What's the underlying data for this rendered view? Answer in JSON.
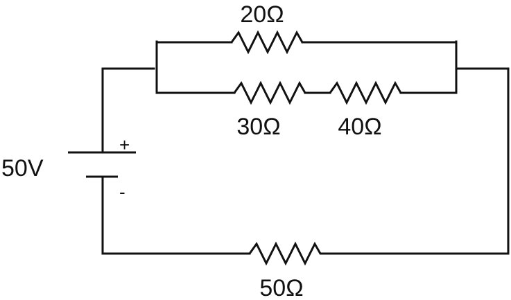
{
  "diagram": {
    "source": {
      "label": "50V",
      "positive": "+",
      "negative": "-"
    },
    "resistors": {
      "r20": {
        "label": "20Ω"
      },
      "r30": {
        "label": "30Ω"
      },
      "r40": {
        "label": "40Ω"
      },
      "r50": {
        "label": "50Ω"
      }
    }
  }
}
